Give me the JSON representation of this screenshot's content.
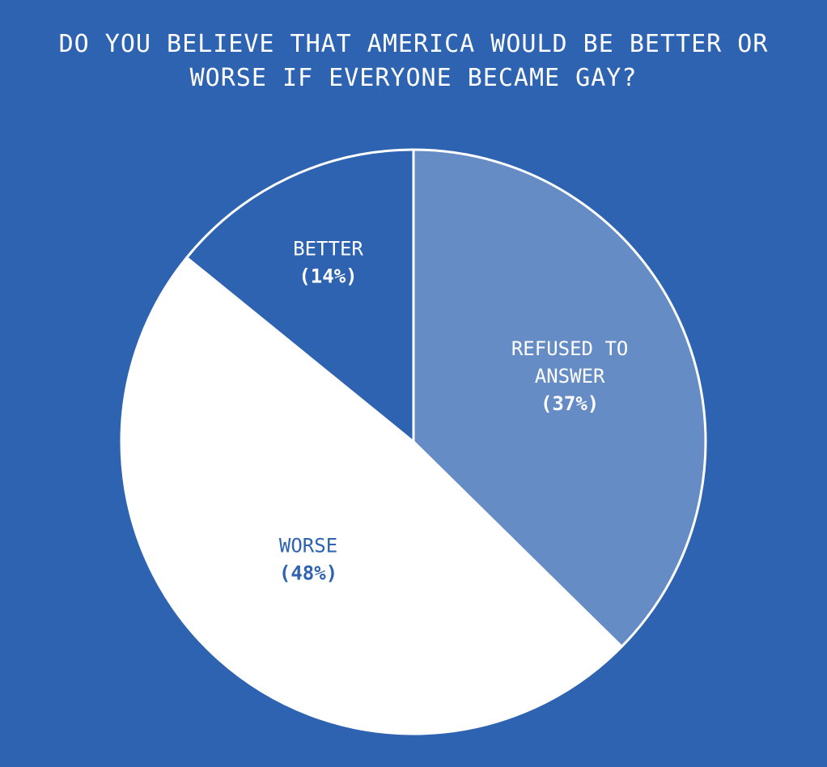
{
  "chart_data": {
    "type": "pie",
    "title_lines": [
      "DO YOU BELIEVE THAT AMERICA WOULD BE BETTER OR",
      "WORSE IF EVERYONE BECAME GAY?"
    ],
    "slices": [
      {
        "name": "REFUSED TO ANSWER",
        "label_lines": [
          "REFUSED TO",
          "ANSWER"
        ],
        "value": 37,
        "value_label": "(37%)",
        "color": "#658cc5",
        "text_color": "#ffffff"
      },
      {
        "name": "WORSE",
        "label_lines": [
          "WORSE"
        ],
        "value": 48,
        "value_label": "(48%)",
        "color": "#ffffff",
        "text_color": "#2e63b1"
      },
      {
        "name": "BETTER",
        "label_lines": [
          "BETTER"
        ],
        "value": 14,
        "value_label": "(14%)",
        "color": "#2e63b1",
        "text_color": "#ffffff"
      }
    ],
    "start_angle": "12 o'clock",
    "direction": "clockwise",
    "slice_border_color": "#ffffff",
    "legend": "none"
  },
  "background_color": "#2e63b1"
}
